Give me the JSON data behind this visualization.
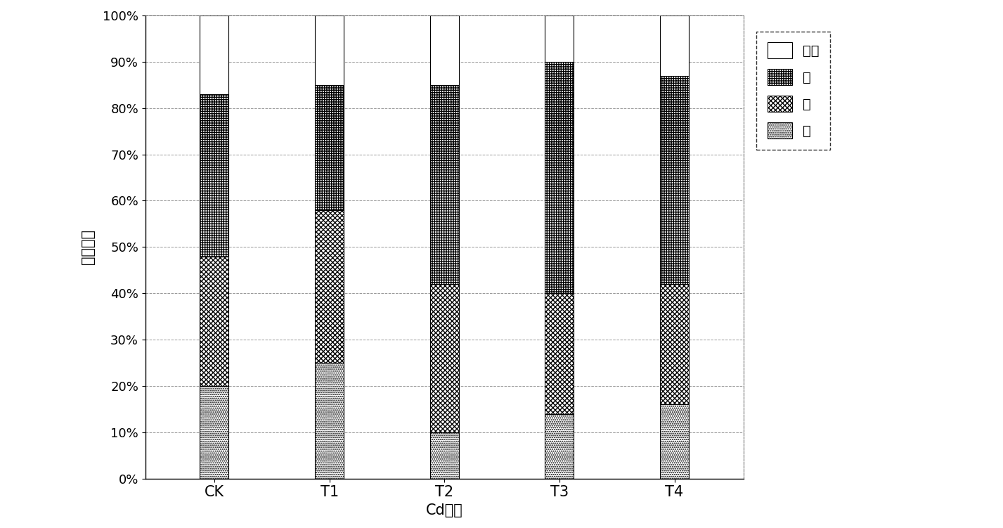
{
  "categories": [
    "CK",
    "T1",
    "T2",
    "T3",
    "T4"
  ],
  "root": [
    20,
    25,
    10,
    14,
    16
  ],
  "stem": [
    28,
    33,
    32,
    26,
    26
  ],
  "leaf": [
    35,
    27,
    43,
    50,
    45
  ],
  "fruit": [
    17,
    15,
    15,
    10,
    13
  ],
  "xlabel": "Cd处理",
  "ylabel": "相对含量",
  "ytick_vals": [
    0,
    10,
    20,
    30,
    40,
    50,
    60,
    70,
    80,
    90,
    100
  ],
  "ytick_labels": [
    "0%",
    "10%",
    "20%",
    "30%",
    "40%",
    "50%",
    "60%",
    "70%",
    "80%",
    "90%",
    "100%"
  ],
  "legend_labels": [
    "果实",
    "叶",
    "茎",
    "根"
  ],
  "background_color": "#ffffff",
  "bar_width": 0.25,
  "figsize": [
    14.27,
    7.51
  ],
  "dpi": 100
}
